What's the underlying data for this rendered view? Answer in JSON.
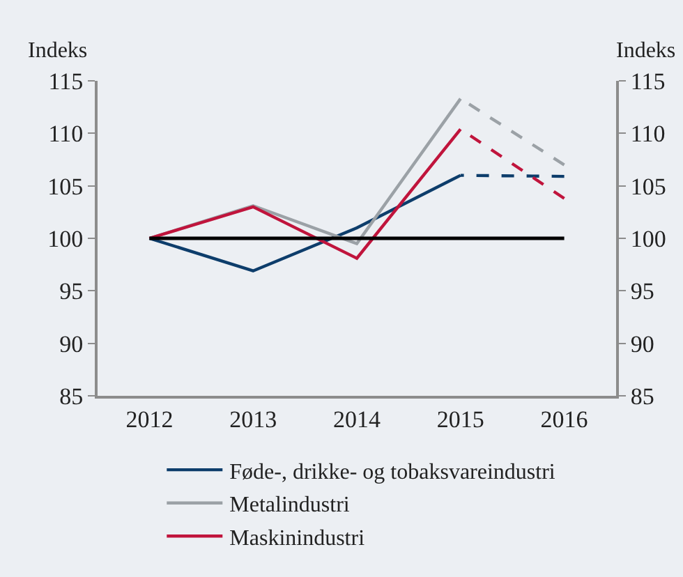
{
  "chart_data": {
    "type": "line",
    "categories": [
      "2012",
      "2013",
      "2014",
      "2015",
      "2016"
    ],
    "ylabel": "Indeks",
    "y2label": "Indeks",
    "ylim": [
      85,
      115
    ],
    "yticks": [
      85,
      90,
      95,
      100,
      105,
      110,
      115
    ],
    "y2lim": [
      85,
      115
    ],
    "y2ticks": [
      85,
      90,
      95,
      100,
      105,
      110,
      115
    ],
    "series": [
      {
        "name": "Føde-, drikke- og tobaksvareindustri",
        "color": "#0d3d6b",
        "line_style": "solid",
        "values": [
          100,
          96.9,
          101,
          106,
          null
        ]
      },
      {
        "name": "Metalindustri",
        "color": "#9ba1a6",
        "line_style": "solid",
        "values": [
          100,
          103.1,
          99.5,
          113.3,
          null
        ]
      },
      {
        "name": "Maskinindustri",
        "color": "#c0143c",
        "line_style": "solid",
        "values": [
          100,
          103,
          98.1,
          110.4,
          null
        ]
      },
      {
        "color": "#0d3d6b",
        "line_style": "dashed",
        "values": [
          null,
          null,
          null,
          106,
          105.9
        ]
      },
      {
        "color": "#9ba1a6",
        "line_style": "dashed",
        "values": [
          null,
          null,
          null,
          113.3,
          107
        ]
      },
      {
        "color": "#c0143c",
        "line_style": "dashed",
        "values": [
          null,
          null,
          null,
          110.4,
          103.8
        ]
      }
    ],
    "ref_lines": [
      {
        "axis": "y",
        "value": 100,
        "color": "#000000",
        "line_style": "solid"
      }
    ],
    "marker": "none",
    "grid": false,
    "legend": "bottom"
  }
}
